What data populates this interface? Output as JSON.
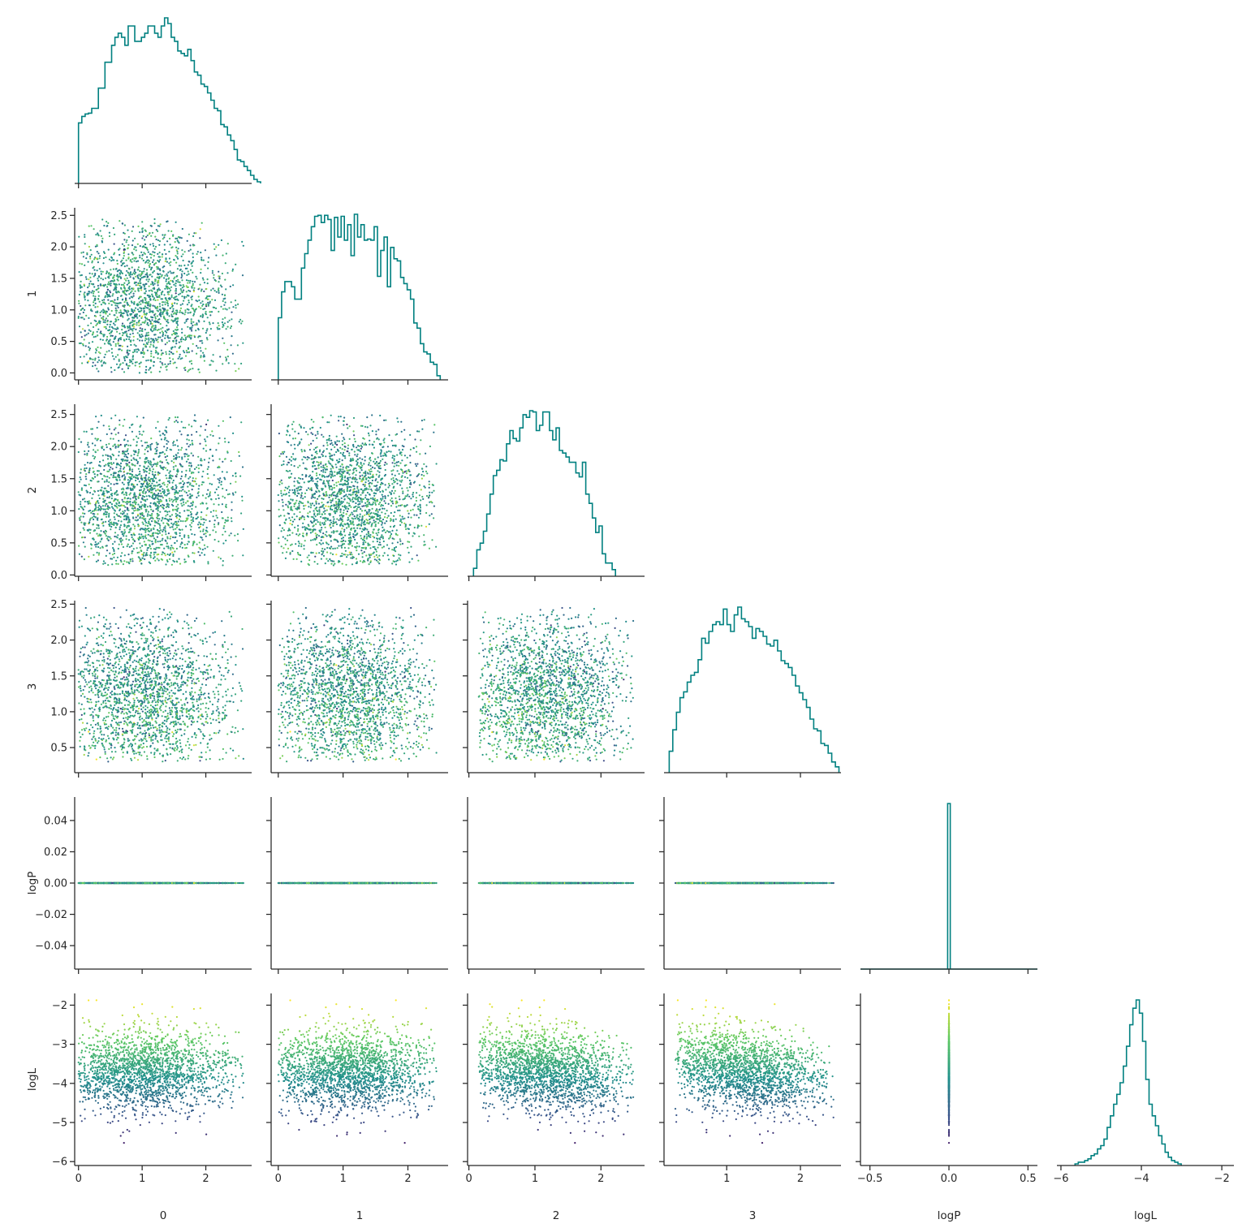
{
  "chart_data": {
    "type": "scatter",
    "layout": "corner-pairplot",
    "variables": [
      "0",
      "1",
      "2",
      "3",
      "logP",
      "logL"
    ],
    "axis_labels": {
      "x": [
        "0",
        "1",
        "2",
        "3",
        "logP",
        "logL"
      ],
      "y": [
        "1",
        "2",
        "3",
        "logP",
        "logL"
      ]
    },
    "ranges": {
      "0": [
        -0.06,
        2.72
      ],
      "1": [
        -0.11,
        2.62
      ],
      "2": [
        -0.02,
        2.66
      ],
      "3": [
        0.15,
        2.55
      ],
      "logP": [
        -0.055,
        0.055
      ],
      "logL": [
        -6.1,
        -1.7
      ]
    },
    "ticks": {
      "0": {
        "values": [
          0,
          1,
          2
        ],
        "labels": [
          "0",
          "1",
          "2"
        ]
      },
      "1": {
        "values": [
          0,
          0.5,
          1.0,
          1.5,
          2.0,
          2.5
        ],
        "labels": [
          "0.0",
          "0.5",
          "1.0",
          "1.5",
          "2.0",
          "2.5"
        ],
        "xvalues": [
          0,
          1,
          2
        ],
        "xlabels": [
          "0",
          "1",
          "2"
        ]
      },
      "2": {
        "values": [
          0,
          0.5,
          1.0,
          1.5,
          2.0,
          2.5
        ],
        "labels": [
          "0.0",
          "0.5",
          "1.0",
          "1.5",
          "2.0",
          "2.5"
        ],
        "xvalues": [
          0,
          1,
          2
        ],
        "xlabels": [
          "0",
          "1",
          "2"
        ]
      },
      "3": {
        "values": [
          0.5,
          1.0,
          1.5,
          2.0,
          2.5
        ],
        "labels": [
          "0.5",
          "1.0",
          "1.5",
          "2.0",
          "2.5"
        ],
        "xvalues": [
          1,
          2
        ],
        "xlabels": [
          "1",
          "2"
        ]
      },
      "logP": {
        "values": [
          -0.04,
          -0.02,
          0,
          0.02,
          0.04
        ],
        "labels": [
          "−0.04",
          "−0.02",
          "0.00",
          "0.02",
          "0.04"
        ],
        "xvalues": [
          -0.5,
          0,
          0.5
        ],
        "xlabels": [
          "−0.5",
          "0.0",
          "0.5"
        ],
        "xrange": [
          -0.56,
          0.56
        ]
      },
      "logL": {
        "values": [
          -6,
          -5,
          -4,
          -3,
          -2
        ],
        "labels": [
          "−6",
          "−5",
          "−4",
          "−3",
          "−2"
        ],
        "xvalues": [
          -6,
          -4,
          -2
        ],
        "xlabels": [
          "−6",
          "−4",
          "−2"
        ]
      }
    },
    "marginals": {
      "0": {
        "edges_start": 0.0,
        "bin_width": 0.052,
        "counts": [
          0.75,
          0.83,
          0.86,
          0.87,
          0.93,
          0.93,
          1.18,
          1.18,
          1.5,
          1.5,
          1.71,
          1.81,
          1.86,
          1.81,
          1.71,
          1.95,
          1.95,
          1.76,
          1.76,
          1.81,
          1.86,
          1.95,
          1.95,
          1.86,
          1.81,
          1.95,
          2.05,
          1.98,
          1.81,
          1.76,
          1.64,
          1.61,
          1.58,
          1.66,
          1.52,
          1.38,
          1.34,
          1.23,
          1.2,
          1.12,
          1.03,
          0.93,
          0.9,
          0.73,
          0.7,
          0.6,
          0.53,
          0.42,
          0.29,
          0.27,
          0.21,
          0.16,
          0.1,
          0.05,
          0.02
        ]
      },
      "1": {
        "edges_start": 0.0,
        "bin_width": 0.051,
        "counts": [
          0.6,
          0.85,
          0.95,
          0.95,
          0.9,
          0.78,
          0.78,
          1.08,
          1.22,
          1.35,
          1.48,
          1.58,
          1.59,
          1.52,
          1.59,
          1.55,
          1.25,
          1.57,
          1.38,
          1.58,
          1.35,
          1.5,
          1.2,
          1.6,
          1.38,
          1.5,
          1.35,
          1.36,
          1.35,
          1.48,
          1.0,
          1.25,
          1.38,
          0.9,
          1.28,
          1.17,
          1.15,
          0.99,
          0.93,
          0.87,
          0.78,
          0.55,
          0.5,
          0.35,
          0.27,
          0.25,
          0.17,
          0.15,
          0.04
        ]
      },
      "2": {
        "edges_start": 0.07,
        "bin_width": 0.05,
        "counts": [
          0.06,
          0.2,
          0.25,
          0.34,
          0.47,
          0.62,
          0.76,
          0.8,
          0.88,
          0.87,
          1.0,
          1.1,
          1.04,
          1.02,
          1.12,
          1.22,
          1.2,
          1.25,
          1.24,
          1.1,
          1.14,
          1.24,
          1.24,
          1.1,
          1.03,
          1.12,
          0.95,
          0.93,
          0.9,
          0.86,
          0.86,
          0.78,
          0.75,
          0.86,
          0.62,
          0.55,
          0.44,
          0.33,
          0.38,
          0.17,
          0.1,
          0.1,
          0.05
        ]
      },
      "3": {
        "edges_start": 0.22,
        "bin_width": 0.049,
        "counts": [
          0.22,
          0.44,
          0.62,
          0.77,
          0.83,
          0.93,
          1.0,
          1.03,
          1.16,
          1.38,
          1.33,
          1.45,
          1.52,
          1.55,
          1.52,
          1.68,
          1.52,
          1.45,
          1.62,
          1.7,
          1.58,
          1.55,
          1.5,
          1.38,
          1.48,
          1.45,
          1.4,
          1.32,
          1.3,
          1.36,
          1.25,
          1.15,
          1.12,
          1.08,
          1.0,
          0.89,
          0.82,
          0.75,
          0.67,
          0.55,
          0.45,
          0.43,
          0.3,
          0.28,
          0.2,
          0.11,
          0.06
        ]
      },
      "logP": {
        "edges_start": -0.008,
        "bin_width": 0.016,
        "counts": [
          1.0
        ]
      },
      "logL": {
        "edges_start": -5.65,
        "bin_width": 0.08,
        "counts": [
          0.01,
          0.02,
          0.02,
          0.03,
          0.04,
          0.06,
          0.07,
          0.1,
          0.12,
          0.16,
          0.23,
          0.3,
          0.37,
          0.43,
          0.5,
          0.6,
          0.72,
          0.85,
          0.95,
          1.0,
          0.92,
          0.75,
          0.52,
          0.37,
          0.3,
          0.24,
          0.18,
          0.13,
          0.08,
          0.05,
          0.03,
          0.02,
          0.01
        ]
      }
    },
    "colormap": [
      "#440154",
      "#3b528b",
      "#21918c",
      "#5ec962",
      "#fde725"
    ],
    "hist_color": "#008080",
    "axis_color": "#262626",
    "sample_count_approx": 2000,
    "distribution": {
      "params_center": [
        1.05,
        1.05,
        1.15,
        1.25
      ],
      "params_low": [
        0.0,
        0.0,
        0.15,
        0.3
      ],
      "params_high": [
        2.6,
        2.45,
        2.5,
        2.45
      ],
      "logP": 0.0,
      "logL_mean": -3.55,
      "logL_sd": 0.5,
      "logL_range": [
        -5.9,
        -1.85
      ]
    }
  }
}
